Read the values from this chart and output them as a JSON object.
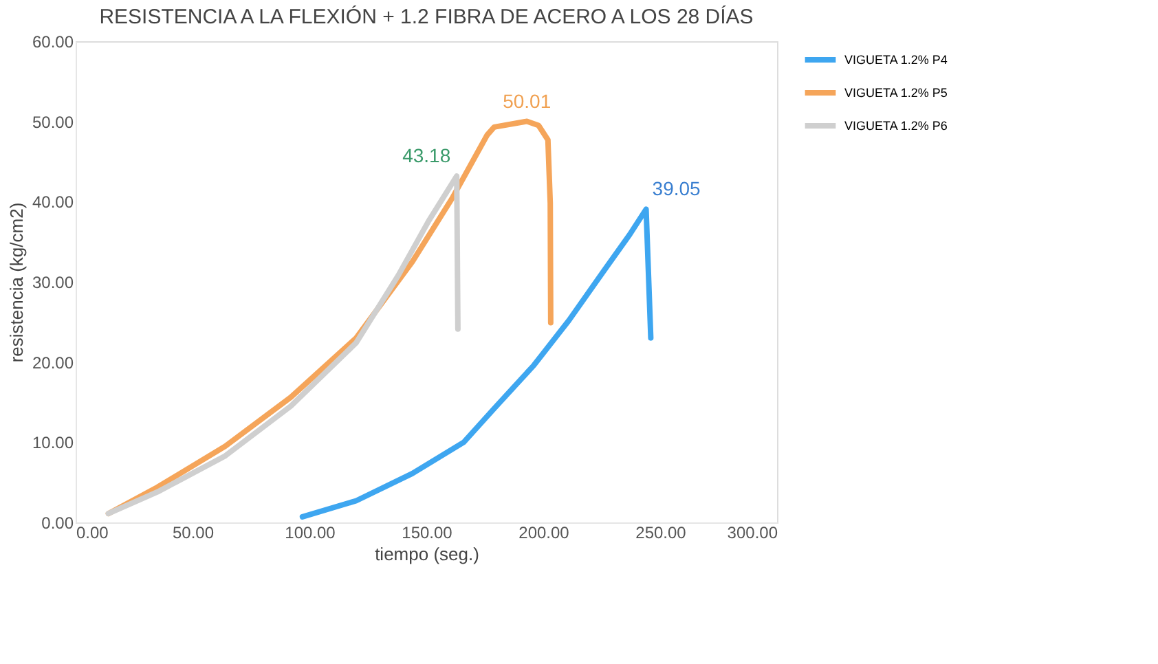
{
  "chart_data": {
    "type": "line",
    "title": "RESISTENCIA A LA FLEXIÓN + 1.2 FIBRA DE ACERO A LOS 28 DÍAS",
    "xlabel": "tiempo (seg.)",
    "ylabel": "resistencia (kg/cm2)",
    "xlim": [
      0,
      300
    ],
    "ylim": [
      0,
      60
    ],
    "xticks": [
      {
        "value": 0,
        "label": "0.00"
      },
      {
        "value": 50,
        "label": "50.00"
      },
      {
        "value": 100,
        "label": "100.00"
      },
      {
        "value": 150,
        "label": "150.00"
      },
      {
        "value": 200,
        "label": "200.00"
      },
      {
        "value": 250,
        "label": "250.00"
      },
      {
        "value": 300,
        "label": "300.00"
      }
    ],
    "yticks": [
      {
        "value": 0,
        "label": "0.00"
      },
      {
        "value": 10,
        "label": "10.00"
      },
      {
        "value": 20,
        "label": "20.00"
      },
      {
        "value": 30,
        "label": "30.00"
      },
      {
        "value": 40,
        "label": "40.00"
      },
      {
        "value": 50,
        "label": "50.00"
      },
      {
        "value": 60,
        "label": "60.00"
      }
    ],
    "legend": "right",
    "marker": "none",
    "line_style": "solid",
    "series": [
      {
        "name": "VIGUETA 1.2% P4",
        "color": "#3ea6f0",
        "x": [
          97,
          120,
          144,
          166,
          179,
          196,
          211,
          226,
          237,
          244,
          246
        ],
        "values": [
          0.7,
          2.7,
          6.1,
          10,
          14.2,
          19.6,
          25.2,
          31.4,
          35.9,
          39.05,
          23
        ]
      },
      {
        "name": "VIGUETA 1.2% P5",
        "color": "#f5a55a",
        "x": [
          14,
          35,
          64,
          92,
          120,
          144,
          161,
          176,
          179,
          193,
          198,
          202,
          203,
          203.2
        ],
        "values": [
          1.1,
          4.4,
          9.5,
          15.6,
          23,
          32.5,
          40.4,
          48.3,
          49.3,
          50.01,
          49.5,
          47.7,
          39.8,
          24.9
        ]
      },
      {
        "name": "VIGUETA 1.2% P6",
        "color": "#cfcfcf",
        "x": [
          14,
          35,
          64,
          92,
          120,
          138,
          151,
          163,
          163.5
        ],
        "values": [
          1.1,
          3.8,
          8.3,
          14.5,
          22.4,
          30.8,
          37.6,
          43.18,
          24.1
        ]
      }
    ],
    "annotations": [
      {
        "text": "39.05",
        "x": 244,
        "y": 39.05
      },
      {
        "text": "50.01",
        "x": 193,
        "y": 50.01
      },
      {
        "text": "43.18",
        "x": 163,
        "y": 43.18
      }
    ]
  }
}
